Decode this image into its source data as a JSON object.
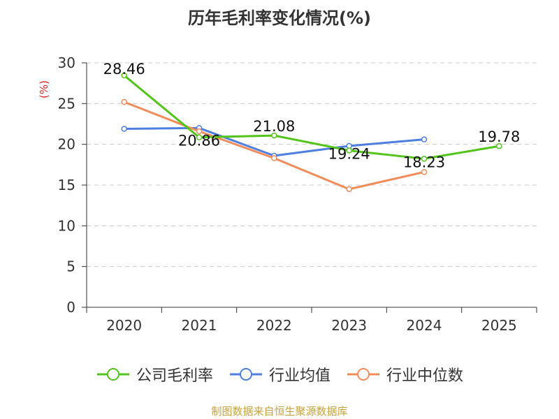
{
  "title": "历年毛利率变化情况(%)",
  "source": "制图数据来自恒生聚源数据库",
  "chart_data": {
    "type": "line",
    "title": "历年毛利率变化情况(%)",
    "ylabel": "(%)",
    "xlabel": "",
    "categories": [
      "2020",
      "2021",
      "2022",
      "2023",
      "2024",
      "2025"
    ],
    "ylim": [
      0,
      30
    ],
    "yticks": [
      0,
      5,
      10,
      15,
      20,
      25,
      30
    ],
    "grid": true,
    "legend_position": "bottom",
    "series": [
      {
        "name": "公司毛利率",
        "color": "#52c41a",
        "values": [
          28.46,
          20.86,
          21.08,
          19.24,
          18.23,
          19.78
        ],
        "labels": [
          "28.46",
          "20.86",
          "21.08",
          "19.24",
          "18.23",
          "19.78"
        ]
      },
      {
        "name": "行业均值",
        "color": "#4e7fe0",
        "values": [
          21.9,
          22.0,
          18.6,
          19.8,
          20.6,
          null
        ]
      },
      {
        "name": "行业中位数",
        "color": "#f28c5a",
        "values": [
          25.2,
          21.6,
          18.3,
          14.5,
          16.6,
          null
        ]
      }
    ]
  }
}
